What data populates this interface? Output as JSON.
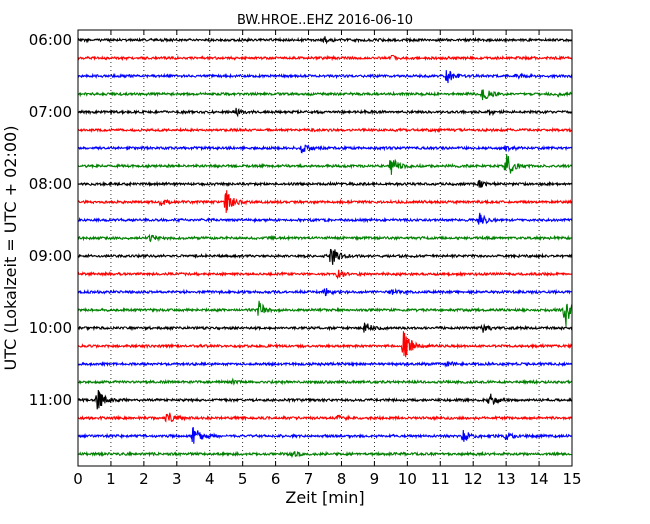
{
  "chart_data": {
    "type": "line",
    "title": "BW.HROE..EHZ 2016-06-10",
    "xlabel": "Zeit  [min]",
    "ylabel": "UTC (Lokalzeit = UTC + 02:00)",
    "xlim": [
      0,
      15
    ],
    "x_ticks": [
      "0",
      "1",
      "2",
      "3",
      "4",
      "5",
      "6",
      "7",
      "8",
      "9",
      "10",
      "11",
      "12",
      "13",
      "14",
      "15"
    ],
    "y_ticks": [
      {
        "label": "06:00",
        "row": 0
      },
      {
        "label": "07:00",
        "row": 4
      },
      {
        "label": "08:00",
        "row": 8
      },
      {
        "label": "09:00",
        "row": 12
      },
      {
        "label": "10:00",
        "row": 16
      },
      {
        "label": "11:00",
        "row": 20
      }
    ],
    "trace_interval_min": 15,
    "grid": "vertical dotted",
    "colors": [
      "#000000",
      "#ff0000",
      "#0000ff",
      "#008000"
    ],
    "traces": [
      {
        "start": "06:00",
        "events": [
          {
            "t": 7.5,
            "a": 0.15
          }
        ]
      },
      {
        "start": "06:15",
        "events": [
          {
            "t": 9.5,
            "a": 0.12
          }
        ]
      },
      {
        "start": "06:30",
        "events": [
          {
            "t": 11.2,
            "a": 0.45
          },
          {
            "t": 13.3,
            "a": 0.15
          }
        ]
      },
      {
        "start": "06:45",
        "events": [
          {
            "t": 12.3,
            "a": 0.4
          },
          {
            "t": 14.5,
            "a": 0.12
          }
        ]
      },
      {
        "start": "07:00",
        "events": [
          {
            "t": 4.8,
            "a": 0.2
          },
          {
            "t": 12.5,
            "a": 0.12
          }
        ]
      },
      {
        "start": "07:15",
        "events": []
      },
      {
        "start": "07:30",
        "events": [
          {
            "t": 6.8,
            "a": 0.3
          },
          {
            "t": 13.0,
            "a": 0.15
          }
        ]
      },
      {
        "start": "07:45",
        "events": [
          {
            "t": 9.5,
            "a": 0.55
          },
          {
            "t": 13.0,
            "a": 0.8
          }
        ]
      },
      {
        "start": "08:00",
        "events": [
          {
            "t": 12.2,
            "a": 0.2
          }
        ]
      },
      {
        "start": "08:15",
        "events": [
          {
            "t": 2.5,
            "a": 0.2
          },
          {
            "t": 4.5,
            "a": 0.65
          }
        ]
      },
      {
        "start": "08:30",
        "events": [
          {
            "t": 12.2,
            "a": 0.35
          }
        ]
      },
      {
        "start": "08:45",
        "events": [
          {
            "t": 2.2,
            "a": 0.15
          }
        ]
      },
      {
        "start": "09:00",
        "events": [
          {
            "t": 7.7,
            "a": 0.75
          }
        ]
      },
      {
        "start": "09:15",
        "events": [
          {
            "t": 7.9,
            "a": 0.3
          }
        ]
      },
      {
        "start": "09:30",
        "events": [
          {
            "t": 7.5,
            "a": 0.2
          },
          {
            "t": 9.5,
            "a": 0.15
          }
        ]
      },
      {
        "start": "09:45",
        "events": [
          {
            "t": 5.5,
            "a": 0.45
          },
          {
            "t": 14.8,
            "a": 1.2
          }
        ]
      },
      {
        "start": "10:00",
        "events": [
          {
            "t": 8.7,
            "a": 0.35
          },
          {
            "t": 12.3,
            "a": 0.2
          }
        ]
      },
      {
        "start": "10:15",
        "events": [
          {
            "t": 9.9,
            "a": 1.1
          }
        ]
      },
      {
        "start": "10:30",
        "events": [
          {
            "t": 11.2,
            "a": 0.12
          }
        ]
      },
      {
        "start": "10:45",
        "events": [
          {
            "t": 4.7,
            "a": 0.12
          }
        ]
      },
      {
        "start": "11:00",
        "events": [
          {
            "t": 0.6,
            "a": 0.6
          },
          {
            "t": 12.5,
            "a": 0.35
          }
        ]
      },
      {
        "start": "11:15",
        "events": [
          {
            "t": 2.7,
            "a": 0.4
          },
          {
            "t": 7.9,
            "a": 0.12
          }
        ]
      },
      {
        "start": "11:30",
        "events": [
          {
            "t": 3.5,
            "a": 0.65
          },
          {
            "t": 11.7,
            "a": 0.35
          },
          {
            "t": 13.0,
            "a": 0.2
          }
        ]
      },
      {
        "start": "11:45",
        "events": [
          {
            "t": 6.5,
            "a": 0.12
          }
        ]
      }
    ]
  }
}
